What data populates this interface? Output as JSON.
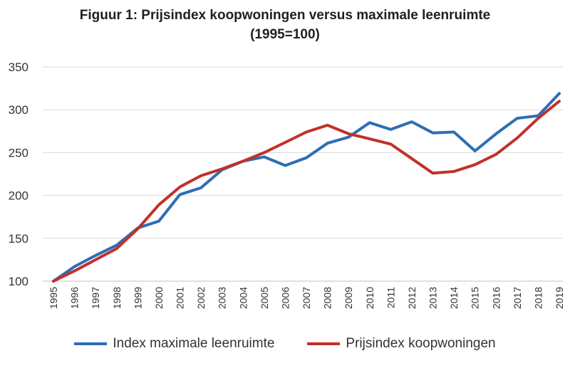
{
  "chart_data": {
    "type": "line",
    "title": "Figuur 1: Prijsindex koopwoningen versus maximale leenruimte",
    "subtitle": "(1995=100)",
    "xlabel": "",
    "ylabel": "",
    "ylim": [
      100,
      350
    ],
    "yticks": [
      "100",
      "150",
      "200",
      "250",
      "300",
      "350"
    ],
    "grid": true,
    "legend_position": "bottom",
    "x": [
      "1995",
      "1996",
      "1997",
      "1998",
      "1999",
      "2000",
      "2001",
      "2002",
      "2003",
      "2004",
      "2005",
      "2006",
      "2007",
      "2008",
      "2009",
      "2010",
      "2011",
      "2012",
      "2013",
      "2014",
      "2015",
      "2016",
      "2017",
      "2018",
      "2019"
    ],
    "series": [
      {
        "name": "Index maximale leenruimte",
        "color": "#2E6DB4",
        "values": [
          100,
          117,
          130,
          142,
          162,
          170,
          201,
          209,
          230,
          240,
          245,
          235,
          244,
          261,
          268,
          285,
          277,
          286,
          273,
          274,
          252,
          272,
          290,
          293,
          319
        ]
      },
      {
        "name": "Prijsindex koopwoningen",
        "color": "#C0312B",
        "values": [
          100,
          112,
          125,
          138,
          161,
          189,
          210,
          223,
          231,
          240,
          250,
          262,
          274,
          282,
          272,
          266,
          260,
          243,
          226,
          228,
          236,
          248,
          267,
          290,
          310
        ]
      }
    ]
  }
}
